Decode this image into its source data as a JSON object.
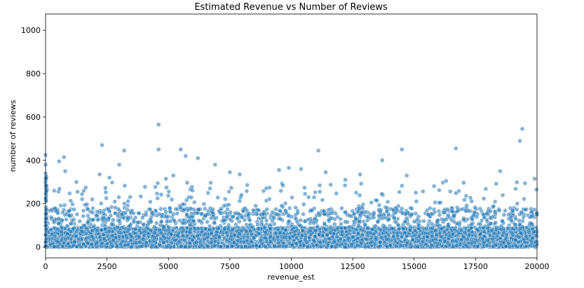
{
  "chart_data": {
    "type": "scatter",
    "title": "Estimated Revenue vs Number of Reviews",
    "xlabel": "revenue_est",
    "ylabel": "number of reviews",
    "xlim": [
      0,
      20000
    ],
    "ylim": [
      -50,
      1075
    ],
    "xticks": [
      "0",
      "2500",
      "5000",
      "7500",
      "10000",
      "12500",
      "15000",
      "17500",
      "20000"
    ],
    "yticks": [
      "0",
      "200",
      "400",
      "600",
      "800",
      "1000"
    ],
    "grid": false,
    "point_color": "#1f77b4",
    "notable_points": [
      {
        "x": 4600,
        "y": 565
      },
      {
        "x": 2300,
        "y": 470
      },
      {
        "x": 19400,
        "y": 545
      },
      {
        "x": 19300,
        "y": 490
      },
      {
        "x": 3200,
        "y": 445
      },
      {
        "x": 4600,
        "y": 450
      },
      {
        "x": 5500,
        "y": 450
      },
      {
        "x": 11100,
        "y": 445
      },
      {
        "x": 14500,
        "y": 450
      },
      {
        "x": 16700,
        "y": 455
      },
      {
        "x": 750,
        "y": 415
      },
      {
        "x": 5700,
        "y": 420
      },
      {
        "x": 0,
        "y": 425
      },
      {
        "x": 6200,
        "y": 410
      },
      {
        "x": 13700,
        "y": 400
      },
      {
        "x": 550,
        "y": 395
      },
      {
        "x": 3000,
        "y": 380
      },
      {
        "x": 6900,
        "y": 380
      },
      {
        "x": 9900,
        "y": 365
      },
      {
        "x": 10400,
        "y": 360
      },
      {
        "x": 9500,
        "y": 355
      },
      {
        "x": 18500,
        "y": 350
      },
      {
        "x": 800,
        "y": 350
      },
      {
        "x": 11400,
        "y": 345
      },
      {
        "x": 7500,
        "y": 345
      },
      {
        "x": 12800,
        "y": 335
      },
      {
        "x": 14700,
        "y": 330
      },
      {
        "x": 2200,
        "y": 335
      },
      {
        "x": 7900,
        "y": 335
      },
      {
        "x": 5200,
        "y": 330
      },
      {
        "x": 2600,
        "y": 320
      },
      {
        "x": 4900,
        "y": 315
      },
      {
        "x": 12200,
        "y": 310
      },
      {
        "x": 19900,
        "y": 315
      },
      {
        "x": 16300,
        "y": 305
      },
      {
        "x": 1300,
        "y": 255
      },
      {
        "x": 350,
        "y": 260
      },
      {
        "x": 0,
        "y": 380
      },
      {
        "x": 0,
        "y": 340
      },
      {
        "x": 0,
        "y": 300
      }
    ],
    "distribution": {
      "description_values": {
        "x_range": [
          0,
          20000
        ],
        "dense_y_range": [
          0,
          150
        ],
        "sparse_y_range": [
          150,
          300
        ],
        "approx_point_count": 6000
      }
    }
  }
}
